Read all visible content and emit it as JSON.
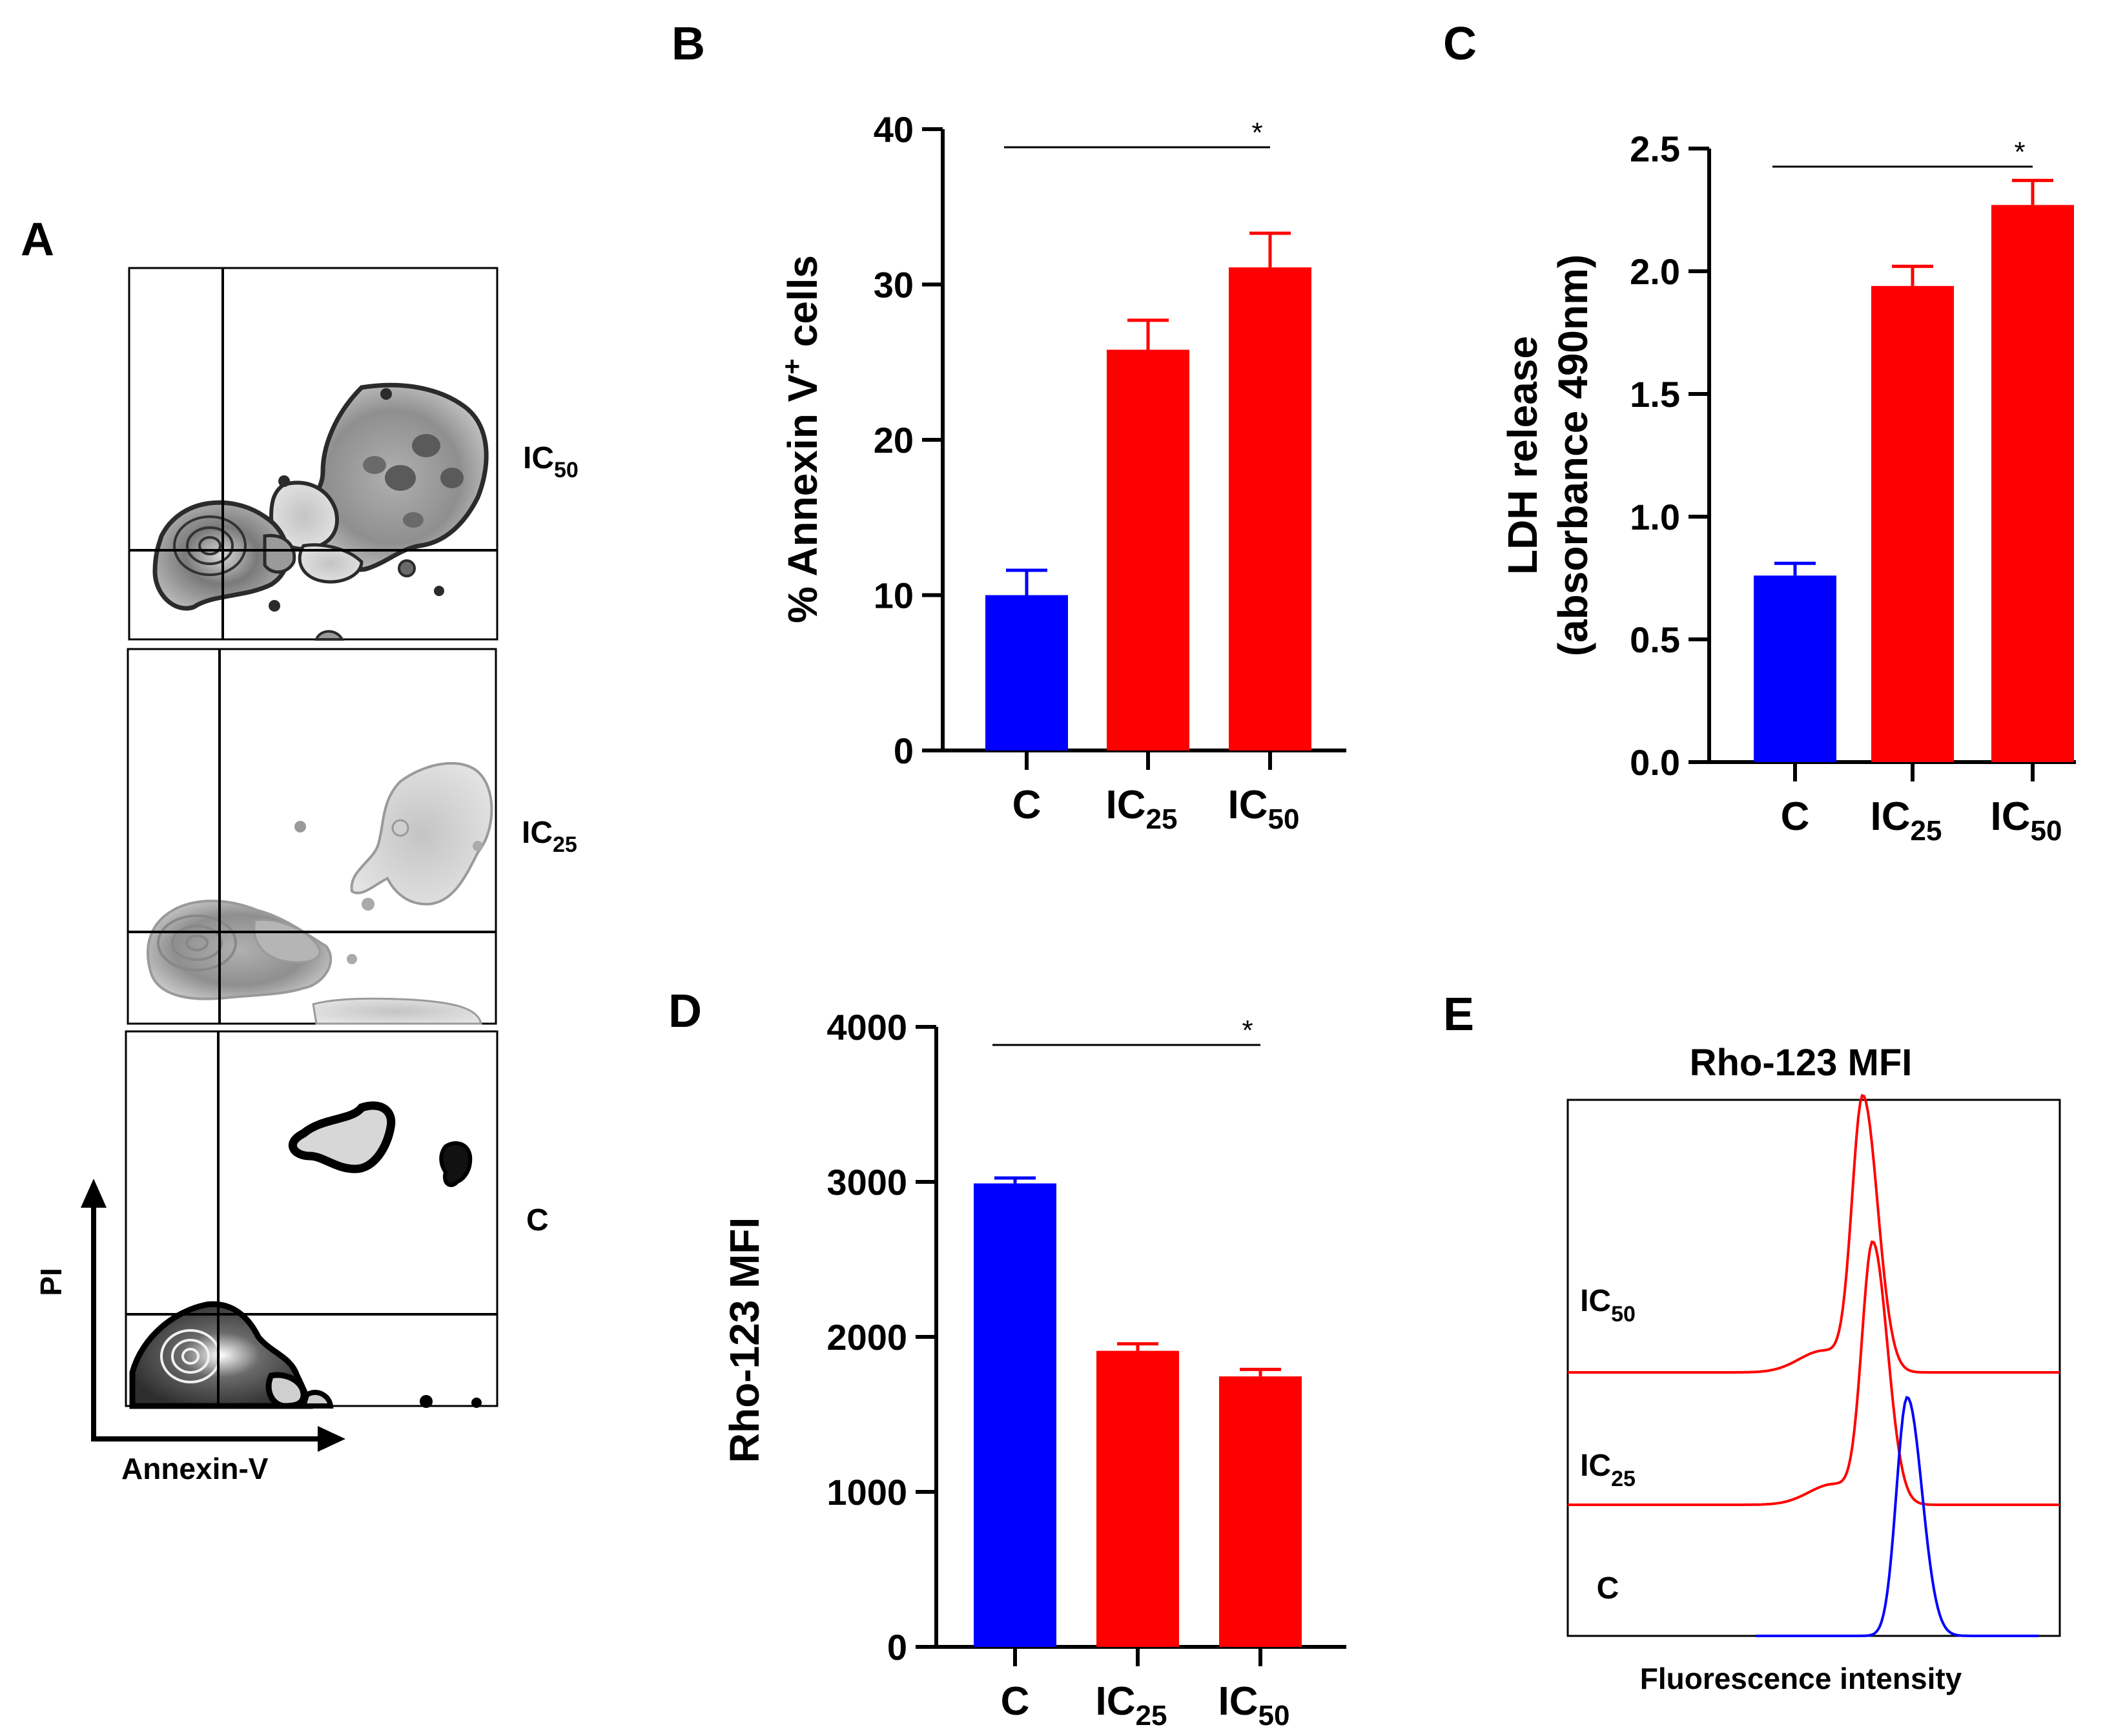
{
  "panels": {
    "A": {
      "letter": "A",
      "plot_labels": [
        {
          "main": "IC",
          "sub": "50"
        },
        {
          "main": "IC",
          "sub": "25"
        },
        {
          "main": "C",
          "sub": ""
        }
      ],
      "x_axis_label": "Annexin-V",
      "y_axis_label": "PI"
    },
    "B": {
      "letter": "B"
    },
    "C": {
      "letter": "C"
    },
    "D": {
      "letter": "D"
    },
    "E": {
      "letter": "E"
    }
  },
  "colors": {
    "control": "#0000ff",
    "treated": "#ff0000",
    "axis": "#000000"
  },
  "chart_data": [
    {
      "id": "B",
      "type": "bar",
      "categories": [
        {
          "main": "C",
          "sub": ""
        },
        {
          "main": "IC",
          "sub": "25"
        },
        {
          "main": "IC",
          "sub": "50"
        }
      ],
      "values": [
        10.0,
        25.8,
        31.1
      ],
      "errors": [
        1.6,
        1.9,
        2.2
      ],
      "ylabel": {
        "prefix": "% Annexin V",
        "sup": "+",
        "suffix": " cells"
      },
      "ylim": [
        0,
        40
      ],
      "yticks": [
        0,
        10,
        20,
        30,
        40
      ],
      "tick_labels": [
        "0",
        "10",
        "20",
        "30",
        "40"
      ],
      "significance": {
        "from": 0,
        "to": 2,
        "label": "*"
      }
    },
    {
      "id": "C",
      "type": "bar",
      "categories": [
        {
          "main": "C",
          "sub": ""
        },
        {
          "main": "IC",
          "sub": "25"
        },
        {
          "main": "IC",
          "sub": "50"
        }
      ],
      "values": [
        0.76,
        1.94,
        2.27
      ],
      "errors": [
        0.05,
        0.08,
        0.1
      ],
      "ylabel_lines": [
        "LDH release",
        "(absorbance 490nm)"
      ],
      "ylim": [
        0,
        2.5
      ],
      "yticks": [
        0,
        0.5,
        1.0,
        1.5,
        2.0,
        2.5
      ],
      "tick_labels": [
        "0.0",
        "0.5",
        "1.0",
        "1.5",
        "2.0",
        "2.5"
      ],
      "significance": {
        "from": 0,
        "to": 2,
        "label": "*"
      }
    },
    {
      "id": "D",
      "type": "bar",
      "categories": [
        {
          "main": "C",
          "sub": ""
        },
        {
          "main": "IC",
          "sub": "25"
        },
        {
          "main": "IC",
          "sub": "50"
        }
      ],
      "values": [
        2990,
        1910,
        1745
      ],
      "errors": [
        35,
        45,
        45
      ],
      "ylabel": "Rho-123 MFI",
      "ylim": [
        0,
        4000
      ],
      "yticks": [
        0,
        1000,
        2000,
        3000,
        4000
      ],
      "tick_labels": [
        "0",
        "1000",
        "2000",
        "3000",
        "4000"
      ],
      "significance": {
        "from": 0,
        "to": 2,
        "label": "*"
      }
    },
    {
      "id": "E",
      "type": "line",
      "title": "Rho-123 MFI",
      "xlabel": "Fluorescence intensity",
      "series": [
        {
          "name": "IC50",
          "label": {
            "main": "IC",
            "sub": "50"
          },
          "color": "#ff0000",
          "peak": 0.6,
          "height": 1.0
        },
        {
          "name": "IC25",
          "label": {
            "main": "IC",
            "sub": "25"
          },
          "color": "#ff0000",
          "peak": 0.62,
          "height": 0.95
        },
        {
          "name": "C",
          "label": {
            "main": "C",
            "sub": ""
          },
          "color": "#0000ff",
          "peak": 0.69,
          "height": 0.88
        }
      ]
    }
  ]
}
